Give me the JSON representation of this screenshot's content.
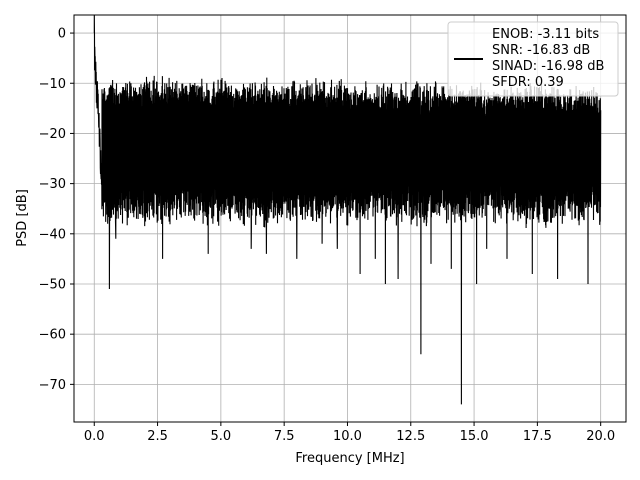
{
  "chart_data": {
    "type": "line",
    "xlabel": "Frequency [MHz]",
    "ylabel": "PSD [dB]",
    "xlim": [
      -0.8,
      21.0
    ],
    "ylim": [
      -77.5,
      3.6
    ],
    "x_ticks": [
      0.0,
      2.5,
      5.0,
      7.5,
      10.0,
      12.5,
      15.0,
      17.5,
      20.0
    ],
    "x_tick_labels": [
      "0.0",
      "2.5",
      "5.0",
      "7.5",
      "10.0",
      "12.5",
      "15.0",
      "17.5",
      "20.0"
    ],
    "y_ticks": [
      0,
      -10,
      -20,
      -30,
      -40,
      -50,
      -60,
      -70
    ],
    "y_tick_labels": [
      "0",
      "−10",
      "−20",
      "−30",
      "−40",
      "−50",
      "−60",
      "−70"
    ],
    "grid": true,
    "legend_position": "top-right",
    "line_color": "#000000",
    "series": [
      {
        "name": "ENOB: -3.11 bits\nSNR: -16.83 dB\nSINAD: -16.98 dB\nSFDR: 0.39",
        "legend_lines": [
          "ENOB: -3.11 bits",
          "SNR: -16.83 dB",
          "SINAD: -16.98 dB",
          "SFDR: 0.39"
        ],
        "noise_floor": {
          "top_envelope": -12,
          "bottom_typical": -35,
          "mean": -24
        },
        "x": [
          0.0,
          0.02,
          0.05,
          0.08,
          0.12,
          0.18,
          0.25,
          0.4,
          0.6,
          0.85,
          1.0,
          1.5,
          2.0,
          2.7,
          3.0,
          4.5,
          5.0,
          6.2,
          6.8,
          7.5,
          8.0,
          9.0,
          9.6,
          10.5,
          11.1,
          11.5,
          12.0,
          12.9,
          13.3,
          14.1,
          14.5,
          15.1,
          15.5,
          16.3,
          17.3,
          18.3,
          19.5,
          20.0
        ],
        "y": [
          0,
          -5,
          -8,
          -10,
          -12,
          -16,
          -27,
          -35,
          -51,
          -41,
          -32,
          -38,
          -39,
          -45,
          -37,
          -44,
          -40,
          -43,
          -44,
          -38,
          -45,
          -42,
          -43,
          -48,
          -45,
          -50,
          -49,
          -64,
          -46,
          -47,
          -74,
          -50,
          -43,
          -45,
          -48,
          -49,
          -50,
          -36
        ]
      }
    ]
  }
}
